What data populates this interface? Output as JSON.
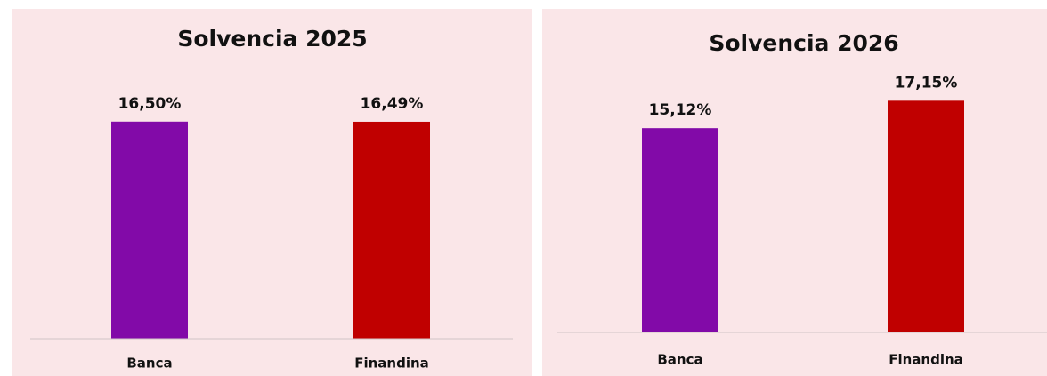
{
  "chart_data": [
    {
      "type": "bar",
      "title": "Solvencia 2025",
      "categories": [
        "Banca",
        "Finandina"
      ],
      "values": [
        16.5,
        16.49
      ],
      "value_labels": [
        "16,50%",
        "16,49%"
      ],
      "colors": [
        "#820aa8",
        "#c00000"
      ],
      "ylim": [
        0,
        20
      ]
    },
    {
      "type": "bar",
      "title": "Solvencia 2026",
      "categories": [
        "Banca",
        "Finandina"
      ],
      "values": [
        15.12,
        17.15
      ],
      "value_labels": [
        "15,12%",
        "17,15%"
      ],
      "colors": [
        "#820aa8",
        "#c00000"
      ],
      "ylim": [
        0,
        20
      ]
    }
  ]
}
